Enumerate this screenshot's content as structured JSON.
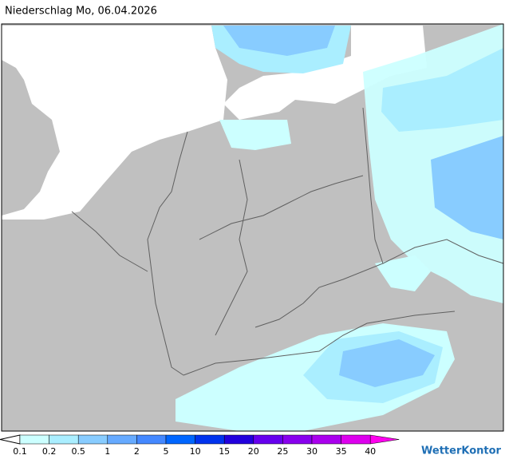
{
  "header": {
    "title": "Niederschlag Mo, 06.04.2026"
  },
  "legend": {
    "levels": [
      0.1,
      0.2,
      0.5,
      1,
      2,
      5,
      10,
      15,
      20,
      25,
      30,
      35,
      40
    ],
    "colors": [
      "#ccffff",
      "#aaeeff",
      "#88ccff",
      "#66aaff",
      "#4488ff",
      "#0066ff",
      "#0033ee",
      "#2200dd",
      "#6600ee",
      "#8800ee",
      "#aa00ee",
      "#dd00ee",
      "#ff00ee"
    ]
  },
  "brand": "WetterKontor"
}
